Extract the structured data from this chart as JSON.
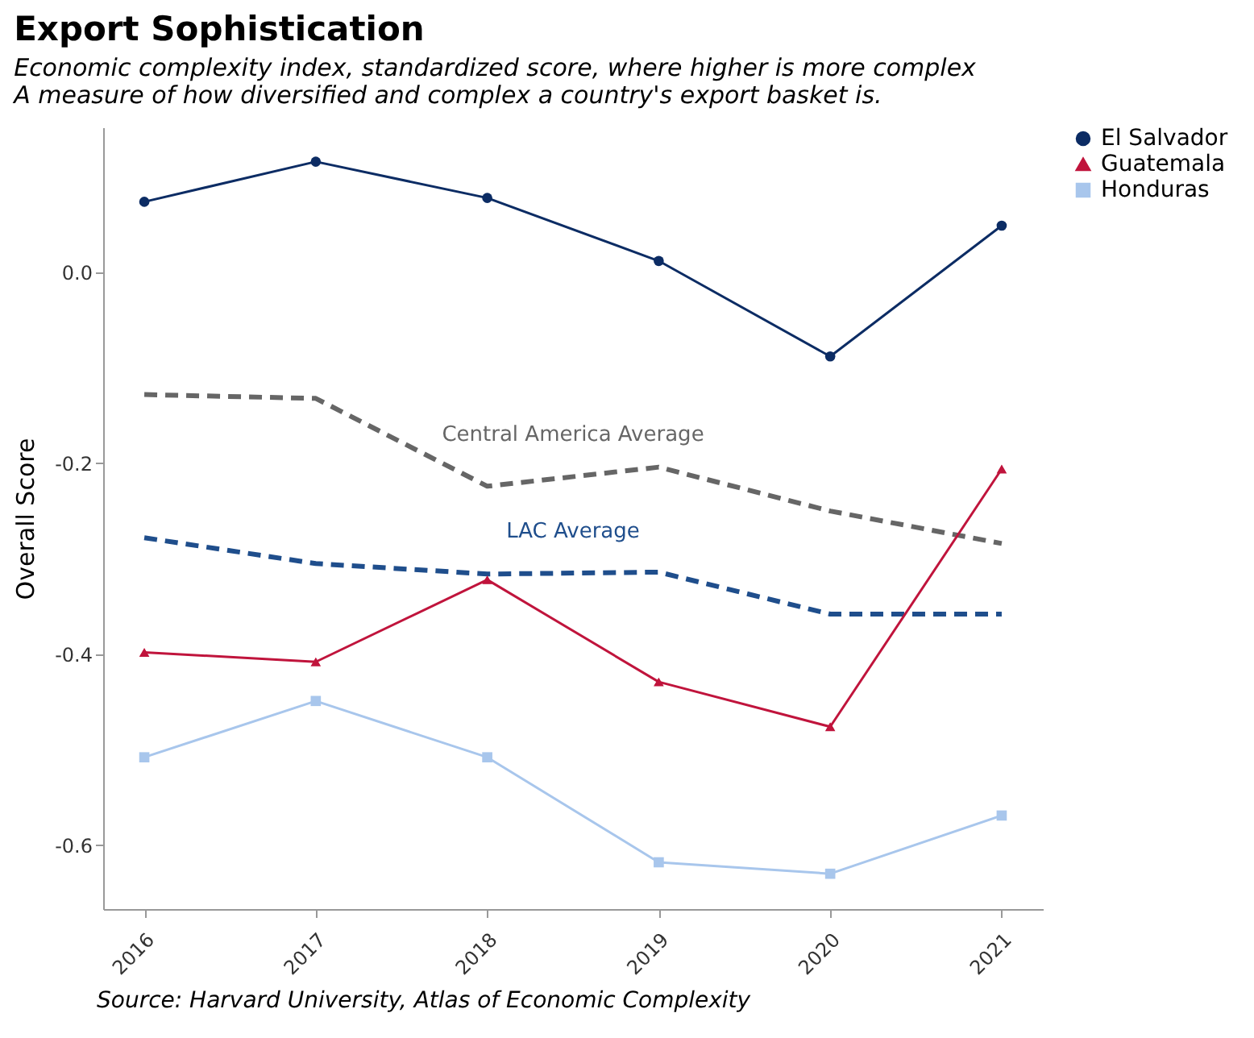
{
  "chart_data": {
    "type": "line",
    "title": "Export Sophistication",
    "subtitle": [
      "Economic complexity index, standardized score, where higher is more complex",
      "A measure of how diversified and complex a country's export basket is."
    ],
    "ylabel": "Overall Score",
    "x": [
      2016,
      2017,
      2018,
      2019,
      2020,
      2021
    ],
    "xlim": [
      2015.76,
      2021.24
    ],
    "xticks": [
      2016,
      2017,
      2018,
      2019,
      2020,
      2021
    ],
    "ylim": [
      -0.667,
      0.152
    ],
    "yticks": [
      {
        "value": -0.6,
        "label": "-0.6"
      },
      {
        "value": -0.4,
        "label": "-0.4"
      },
      {
        "value": -0.2,
        "label": "-0.2"
      },
      {
        "value": 0,
        "label": "0.0"
      }
    ],
    "series": [
      {
        "name": "El Salvador",
        "color": "#0c2c64",
        "marker": "circle",
        "values": [
          0.074,
          0.116,
          0.078,
          0.012,
          -0.088,
          0.049
        ]
      },
      {
        "name": "Guatemala",
        "color": "#c0143c",
        "marker": "triangle",
        "values": [
          -0.398,
          -0.408,
          -0.322,
          -0.429,
          -0.476,
          -0.206
        ]
      },
      {
        "name": "Honduras",
        "color": "#a8c6ec",
        "marker": "square",
        "values": [
          -0.508,
          -0.449,
          -0.508,
          -0.618,
          -0.63,
          -0.569
        ]
      },
      {
        "name": "Central America Average",
        "color": "#666666",
        "line_style": "dashed",
        "values": [
          -0.128,
          -0.132,
          -0.224,
          -0.204,
          -0.25,
          -0.284
        ]
      },
      {
        "name": "LAC Average",
        "color": "#1f4e8c",
        "line_style": "dashed",
        "values": [
          -0.278,
          -0.305,
          -0.316,
          -0.314,
          -0.358,
          -0.358
        ]
      }
    ],
    "annotations": [
      "Source: Harvard University, Atlas of Economic Complexity"
    ],
    "legend": "right",
    "grid": false
  }
}
